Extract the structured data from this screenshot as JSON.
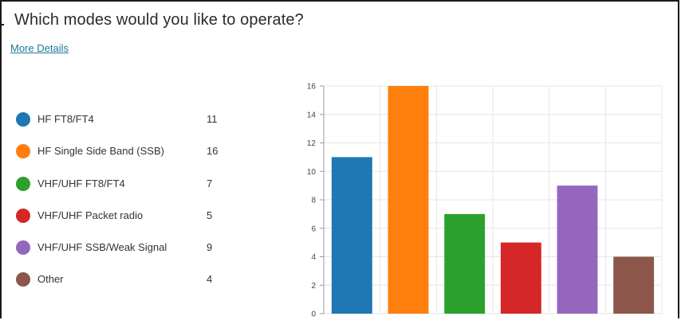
{
  "question": {
    "title": "Which modes would you like to operate?",
    "more_details_label": "More Details"
  },
  "legend": [
    {
      "label": "HF FT8/FT4",
      "count": "11",
      "color": "#1f77b4"
    },
    {
      "label": "HF Single Side Band (SSB)",
      "count": "16",
      "color": "#ff7f0e"
    },
    {
      "label": "VHF/UHF FT8/FT4",
      "count": "7",
      "color": "#2ca02c"
    },
    {
      "label": "VHF/UHF Packet radio",
      "count": "5",
      "color": "#d62728"
    },
    {
      "label": "VHF/UHF SSB/Weak Signal",
      "count": "9",
      "color": "#9467bd"
    },
    {
      "label": "Other",
      "count": "4",
      "color": "#8c564b"
    }
  ],
  "chart_data": {
    "type": "bar",
    "categories": [
      "HF FT8/FT4",
      "HF Single Side Band (SSB)",
      "VHF/UHF FT8/FT4",
      "VHF/UHF Packet radio",
      "VHF/UHF SSB/Weak Signal",
      "Other"
    ],
    "values": [
      11,
      16,
      7,
      5,
      9,
      4
    ],
    "colors": [
      "#1f77b4",
      "#ff7f0e",
      "#2ca02c",
      "#d62728",
      "#9467bd",
      "#8c564b"
    ],
    "ylim": [
      0,
      16
    ],
    "yticks": [
      "0",
      "2",
      "4",
      "6",
      "8",
      "10",
      "12",
      "14",
      "16"
    ],
    "grid": true,
    "legend_placement": "left",
    "title": "",
    "xlabel": "",
    "ylabel": ""
  }
}
